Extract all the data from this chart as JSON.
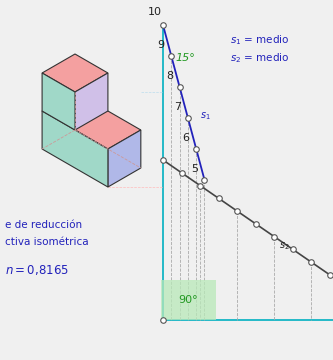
{
  "bg_color": "#f0f0f0",
  "line_color_cyan": "#00b0c0",
  "line_color_s1": "#2222bb",
  "line_color_s2": "#444444",
  "line_color_dashed": "#aaaaaa",
  "text_color_blue": "#2222bb",
  "text_color_green": "#229922",
  "text_color_dark": "#222222",
  "angle_90_bg": "#b8e8b8",
  "angle_15_text": "15°",
  "angle_90_text": "90°",
  "label_reduction": "e de reducción",
  "label_iso": "ctiva isométrica",
  "s1_tick_labels": [
    10,
    9,
    8,
    7,
    6,
    5
  ],
  "figsize": [
    3.33,
    3.6
  ],
  "dpi": 100,
  "xlim": [
    0,
    333
  ],
  "ylim": [
    0,
    360
  ]
}
